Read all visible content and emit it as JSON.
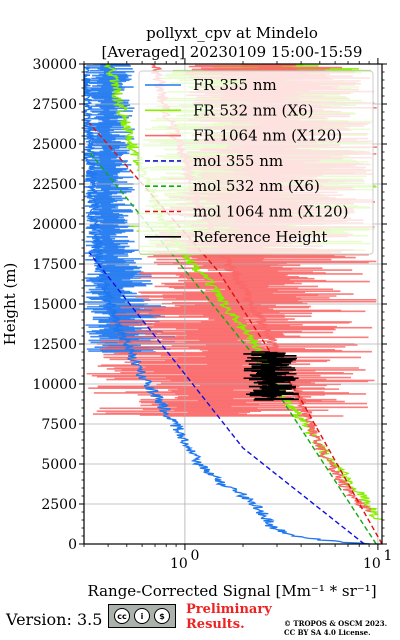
{
  "chart_data": {
    "type": "line",
    "title": "pollyxt_cpv at Mindelo",
    "subtitle": "[Averaged] 20230109 15:00-15:59",
    "xlabel": "Range-Corrected Signal [Mm⁻¹ * sr⁻¹]",
    "ylabel": "Height (m)",
    "xscale": "log",
    "xlim": [
      0.3,
      10.5
    ],
    "ylim": [
      0,
      30000
    ],
    "xticks": [
      {
        "value": 1,
        "base": "10",
        "exp": "0"
      },
      {
        "value": 10,
        "base": "10",
        "exp": "1"
      }
    ],
    "yticks": [
      0,
      2500,
      5000,
      7500,
      10000,
      12500,
      15000,
      17500,
      20000,
      22500,
      25000,
      27500,
      30000
    ],
    "ytick_labels": [
      "0",
      "2500",
      "5000",
      "7500",
      "10000",
      "12500",
      "15000",
      "17500",
      "20000",
      "22500",
      "25000",
      "27500",
      "30000"
    ],
    "grid": true,
    "legend_position": "upper right",
    "series": [
      {
        "name": "FR 355 nm",
        "color": "#1f78f0",
        "style": "solid",
        "points": [
          [
            9.5,
            0
          ],
          [
            7.0,
            100
          ],
          [
            5.0,
            250
          ],
          [
            3.5,
            600
          ],
          [
            2.8,
            1100
          ],
          [
            2.6,
            1700
          ],
          [
            2.4,
            2300
          ],
          [
            2.2,
            2700
          ],
          [
            1.9,
            3200
          ],
          [
            1.6,
            3700
          ],
          [
            1.4,
            4300
          ],
          [
            1.2,
            4900
          ],
          [
            1.1,
            5600
          ],
          [
            1.0,
            6200
          ],
          [
            0.95,
            7000
          ],
          [
            0.85,
            7800
          ],
          [
            0.75,
            8800
          ],
          [
            0.68,
            9600
          ],
          [
            0.6,
            10500
          ],
          [
            0.55,
            11500
          ],
          [
            0.5,
            12500
          ],
          [
            0.45,
            13500
          ],
          [
            0.42,
            14500
          ],
          [
            0.4,
            15500
          ],
          [
            0.38,
            16500
          ],
          [
            0.36,
            17500
          ],
          [
            0.35,
            18500
          ],
          [
            0.34,
            20000
          ],
          [
            0.33,
            22000
          ],
          [
            0.32,
            25000
          ],
          [
            0.31,
            28000
          ],
          [
            0.3,
            30000
          ]
        ],
        "envelope": [
          [
            0.3,
            0.95,
            12000
          ],
          [
            0.3,
            0.9,
            13000
          ],
          [
            0.3,
            0.8,
            14000
          ],
          [
            0.3,
            0.7,
            16000
          ],
          [
            0.3,
            0.6,
            18000
          ],
          [
            0.3,
            0.55,
            20000
          ],
          [
            0.3,
            0.55,
            22000
          ],
          [
            0.3,
            0.55,
            24000
          ],
          [
            0.3,
            0.55,
            26000
          ],
          [
            0.3,
            0.55,
            28000
          ],
          [
            0.3,
            0.55,
            30000
          ]
        ]
      },
      {
        "name": "FR 532 nm (X6)",
        "color": "#88ee00",
        "style": "solid",
        "points": [
          [
            10.0,
            1500
          ],
          [
            9.0,
            2500
          ],
          [
            7.5,
            3500
          ],
          [
            6.5,
            4500
          ],
          [
            5.5,
            5500
          ],
          [
            4.8,
            6500
          ],
          [
            4.2,
            7500
          ],
          [
            3.6,
            8500
          ],
          [
            3.2,
            9500
          ],
          [
            2.9,
            10500
          ],
          [
            2.6,
            11500
          ],
          [
            2.3,
            12500
          ],
          [
            2.0,
            13500
          ],
          [
            1.7,
            14500
          ],
          [
            1.5,
            15500
          ],
          [
            1.3,
            16500
          ],
          [
            1.1,
            17500
          ],
          [
            0.95,
            18500
          ],
          [
            0.85,
            19500
          ],
          [
            0.75,
            20500
          ],
          [
            0.7,
            21500
          ],
          [
            0.65,
            22500
          ],
          [
            0.6,
            23500
          ],
          [
            0.55,
            24500
          ],
          [
            0.5,
            26000
          ],
          [
            0.45,
            28000
          ],
          [
            0.4,
            30000
          ]
        ],
        "envelope": [
          [
            0.5,
            10.0,
            18000
          ],
          [
            0.5,
            10.0,
            20000
          ],
          [
            0.6,
            10.0,
            22000
          ],
          [
            0.6,
            10.0,
            24000
          ],
          [
            0.6,
            10.0,
            26000
          ],
          [
            0.7,
            10.0,
            28000
          ],
          [
            0.7,
            10.0,
            30000
          ]
        ]
      },
      {
        "name": "FR 1064 nm (X120)",
        "color": "#fa6868",
        "style": "solid",
        "points": [
          [
            9.0,
            2000
          ],
          [
            7.5,
            3000
          ],
          [
            6.0,
            4500
          ],
          [
            5.0,
            6000
          ],
          [
            4.5,
            7500
          ],
          [
            4.0,
            9000
          ],
          [
            3.5,
            10500
          ],
          [
            3.0,
            12000
          ],
          [
            2.6,
            13500
          ],
          [
            2.2,
            15000
          ],
          [
            1.9,
            16500
          ],
          [
            1.6,
            18000
          ],
          [
            1.4,
            19500
          ],
          [
            1.2,
            21000
          ],
          [
            1.1,
            22500
          ],
          [
            1.0,
            24000
          ],
          [
            0.9,
            25500
          ],
          [
            0.8,
            27000
          ],
          [
            0.75,
            28500
          ],
          [
            0.7,
            30000
          ]
        ],
        "envelope": [
          [
            0.3,
            10.0,
            8000
          ],
          [
            0.3,
            10.0,
            10000
          ],
          [
            0.35,
            10.0,
            12000
          ],
          [
            0.4,
            10.0,
            14000
          ],
          [
            0.5,
            10.0,
            16000
          ],
          [
            0.6,
            10.0,
            18000
          ],
          [
            0.7,
            10.0,
            20000
          ],
          [
            0.8,
            10.0,
            22000
          ],
          [
            0.9,
            10.0,
            24000
          ],
          [
            1.0,
            10.0,
            26000
          ],
          [
            1.0,
            10.0,
            28000
          ],
          [
            1.0,
            10.0,
            30000
          ]
        ]
      },
      {
        "name": "mol 355 nm",
        "color": "#1010dd",
        "style": "dashed",
        "points": [
          [
            8.5,
            0
          ],
          [
            2.0,
            6000
          ],
          [
            0.32,
            18200
          ]
        ]
      },
      {
        "name": "mol 532 nm (X6)",
        "color": "#11aa11",
        "style": "dashed",
        "points": [
          [
            9.8,
            0
          ],
          [
            2.2,
            12000
          ],
          [
            0.32,
            24500
          ]
        ]
      },
      {
        "name": "mol 1064 nm (X120)",
        "color": "#dd1111",
        "style": "dashed",
        "points": [
          [
            10.5,
            0
          ],
          [
            4.0,
            9000
          ],
          [
            1.5,
            17000
          ],
          [
            0.32,
            26300
          ]
        ]
      },
      {
        "name": "Reference Height",
        "color": "#000000",
        "style": "solid",
        "points": [
          [
            2.0,
            9000
          ],
          [
            3.5,
            9500
          ],
          [
            2.5,
            10000
          ],
          [
            3.8,
            10500
          ],
          [
            2.2,
            11000
          ],
          [
            3.0,
            11500
          ],
          [
            2.0,
            12000
          ],
          [
            2.9,
            9200
          ],
          [
            2.3,
            10300
          ],
          [
            3.4,
            11200
          ]
        ]
      }
    ]
  },
  "footer": {
    "version": "Version: 3.5",
    "cc_glyphs": [
      "cc",
      "i",
      "$"
    ],
    "preliminary_line1": "Preliminary",
    "preliminary_line2": "Results.",
    "copyright_line1": "© TROPOS & OSCM 2023.",
    "copyright_line2": "CC BY SA 4.0 License."
  }
}
